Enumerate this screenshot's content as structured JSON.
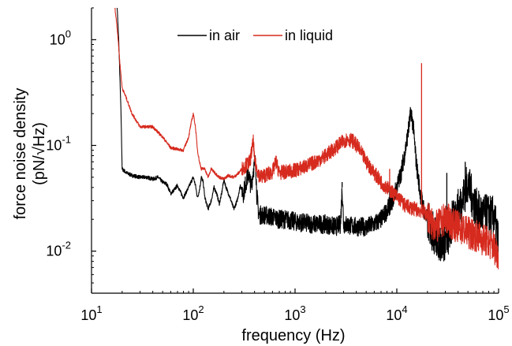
{
  "chart_data": {
    "type": "line",
    "title": "",
    "xlabel": "frequency (Hz)",
    "ylabel_lines": [
      "force noise density",
      "(pN/√Hz)"
    ],
    "x_scale": "log",
    "y_scale": "log",
    "xlim": [
      10,
      100000
    ],
    "ylim": [
      0.004,
      2
    ],
    "x_ticks": [
      {
        "value": 10,
        "base": "10",
        "exp": "1"
      },
      {
        "value": 100,
        "base": "10",
        "exp": "2"
      },
      {
        "value": 1000,
        "base": "10",
        "exp": "3"
      },
      {
        "value": 10000,
        "base": "10",
        "exp": "4"
      },
      {
        "value": 100000,
        "base": "10",
        "exp": "5"
      }
    ],
    "y_ticks": [
      {
        "value": 0.01,
        "base": "10",
        "exp": "-2"
      },
      {
        "value": 0.1,
        "base": "10",
        "exp": "-1"
      },
      {
        "value": 1,
        "base": "10",
        "exp": "0"
      }
    ],
    "grid": false,
    "legend_position": "top-center",
    "series": [
      {
        "name": "in air",
        "color": "#000000",
        "noise_amp": 0.09,
        "points": [
          [
            17.5,
            3.0
          ],
          [
            18.5,
            1.0
          ],
          [
            19.5,
            0.2
          ],
          [
            20,
            0.06
          ],
          [
            22,
            0.055
          ],
          [
            25,
            0.052
          ],
          [
            30,
            0.05
          ],
          [
            35,
            0.05
          ],
          [
            40,
            0.048
          ],
          [
            45,
            0.05
          ],
          [
            50,
            0.045
          ],
          [
            55,
            0.043
          ],
          [
            60,
            0.035
          ],
          [
            65,
            0.038
          ],
          [
            70,
            0.042
          ],
          [
            75,
            0.036
          ],
          [
            80,
            0.032
          ],
          [
            85,
            0.036
          ],
          [
            90,
            0.04
          ],
          [
            95,
            0.045
          ],
          [
            100,
            0.05
          ],
          [
            105,
            0.042
          ],
          [
            110,
            0.032
          ],
          [
            115,
            0.038
          ],
          [
            120,
            0.05
          ],
          [
            125,
            0.045
          ],
          [
            130,
            0.032
          ],
          [
            140,
            0.025
          ],
          [
            150,
            0.03
          ],
          [
            160,
            0.04
          ],
          [
            170,
            0.035
          ],
          [
            180,
            0.028
          ],
          [
            190,
            0.035
          ],
          [
            200,
            0.048
          ],
          [
            210,
            0.04
          ],
          [
            230,
            0.032
          ],
          [
            250,
            0.025
          ],
          [
            270,
            0.03
          ],
          [
            290,
            0.042
          ],
          [
            310,
            0.035
          ],
          [
            330,
            0.045
          ],
          [
            350,
            0.055
          ],
          [
            370,
            0.04
          ],
          [
            390,
            0.06
          ],
          [
            410,
            0.07
          ],
          [
            420,
            0.035
          ],
          [
            440,
            0.022
          ],
          [
            500,
            0.022
          ],
          [
            600,
            0.021
          ],
          [
            700,
            0.02
          ],
          [
            800,
            0.02
          ],
          [
            1000,
            0.019
          ],
          [
            1500,
            0.018
          ],
          [
            2000,
            0.018
          ],
          [
            2500,
            0.017
          ],
          [
            2800,
            0.018
          ],
          [
            2900,
            0.04
          ],
          [
            3000,
            0.018
          ],
          [
            4000,
            0.017
          ],
          [
            5000,
            0.017
          ],
          [
            6000,
            0.018
          ],
          [
            7000,
            0.02
          ],
          [
            8000,
            0.024
          ],
          [
            9000,
            0.03
          ],
          [
            10000,
            0.04
          ],
          [
            11000,
            0.055
          ],
          [
            12000,
            0.085
          ],
          [
            13000,
            0.14
          ],
          [
            13800,
            0.21
          ],
          [
            14500,
            0.15
          ],
          [
            15500,
            0.07
          ],
          [
            17000,
            0.035
          ],
          [
            19000,
            0.022
          ],
          [
            22000,
            0.016
          ],
          [
            25000,
            0.013
          ],
          [
            28000,
            0.012
          ],
          [
            32000,
            0.014
          ],
          [
            38000,
            0.022
          ],
          [
            45000,
            0.032
          ],
          [
            50000,
            0.045
          ],
          [
            55000,
            0.032
          ],
          [
            62000,
            0.024
          ],
          [
            70000,
            0.022
          ],
          [
            80000,
            0.022
          ],
          [
            90000,
            0.021
          ],
          [
            100000,
            0.012
          ]
        ],
        "spikes": [
          [
            2900,
            0.045
          ],
          [
            8500,
            0.04
          ],
          [
            14000,
            0.21
          ],
          [
            31000,
            0.055
          ],
          [
            35000,
            0.03
          ],
          [
            47000,
            0.07
          ]
        ]
      },
      {
        "name": "in liquid",
        "color": "#d62a1e",
        "noise_amp": 0.07,
        "points": [
          [
            15,
            3.0
          ],
          [
            17,
            2.0
          ],
          [
            18,
            1.2
          ],
          [
            19,
            0.6
          ],
          [
            20,
            0.35
          ],
          [
            22,
            0.28
          ],
          [
            25,
            0.2
          ],
          [
            30,
            0.15
          ],
          [
            35,
            0.15
          ],
          [
            40,
            0.15
          ],
          [
            50,
            0.12
          ],
          [
            60,
            0.095
          ],
          [
            70,
            0.092
          ],
          [
            80,
            0.09
          ],
          [
            90,
            0.12
          ],
          [
            95,
            0.16
          ],
          [
            100,
            0.2
          ],
          [
            105,
            0.15
          ],
          [
            110,
            0.09
          ],
          [
            115,
            0.07
          ],
          [
            120,
            0.06
          ],
          [
            130,
            0.06
          ],
          [
            140,
            0.05
          ],
          [
            150,
            0.06
          ],
          [
            160,
            0.056
          ],
          [
            180,
            0.05
          ],
          [
            200,
            0.048
          ],
          [
            220,
            0.052
          ],
          [
            250,
            0.05
          ],
          [
            280,
            0.055
          ],
          [
            300,
            0.06
          ],
          [
            330,
            0.065
          ],
          [
            360,
            0.07
          ],
          [
            390,
            0.11
          ],
          [
            400,
            0.07
          ],
          [
            450,
            0.05
          ],
          [
            500,
            0.052
          ],
          [
            600,
            0.056
          ],
          [
            650,
            0.07
          ],
          [
            700,
            0.055
          ],
          [
            800,
            0.056
          ],
          [
            1000,
            0.058
          ],
          [
            1200,
            0.062
          ],
          [
            1500,
            0.068
          ],
          [
            1800,
            0.075
          ],
          [
            2000,
            0.08
          ],
          [
            2500,
            0.095
          ],
          [
            3000,
            0.11
          ],
          [
            3300,
            0.115
          ],
          [
            3700,
            0.11
          ],
          [
            4200,
            0.095
          ],
          [
            5000,
            0.07
          ],
          [
            6000,
            0.055
          ],
          [
            7000,
            0.045
          ],
          [
            8000,
            0.04
          ],
          [
            9000,
            0.036
          ],
          [
            10000,
            0.033
          ],
          [
            11000,
            0.03
          ],
          [
            12000,
            0.027
          ],
          [
            15000,
            0.025
          ],
          [
            18000,
            0.024
          ],
          [
            20000,
            0.022
          ],
          [
            22000,
            0.018
          ],
          [
            25000,
            0.017
          ],
          [
            28000,
            0.019
          ],
          [
            30000,
            0.021
          ],
          [
            35000,
            0.018
          ],
          [
            40000,
            0.017
          ],
          [
            50000,
            0.015
          ],
          [
            60000,
            0.014
          ],
          [
            70000,
            0.013
          ],
          [
            80000,
            0.012
          ],
          [
            90000,
            0.011
          ],
          [
            100000,
            0.009
          ]
        ],
        "spikes": [
          [
            17500,
            0.6
          ],
          [
            8500,
            0.06
          ],
          [
            650,
            0.08
          ],
          [
            385,
            0.11
          ]
        ]
      }
    ]
  }
}
